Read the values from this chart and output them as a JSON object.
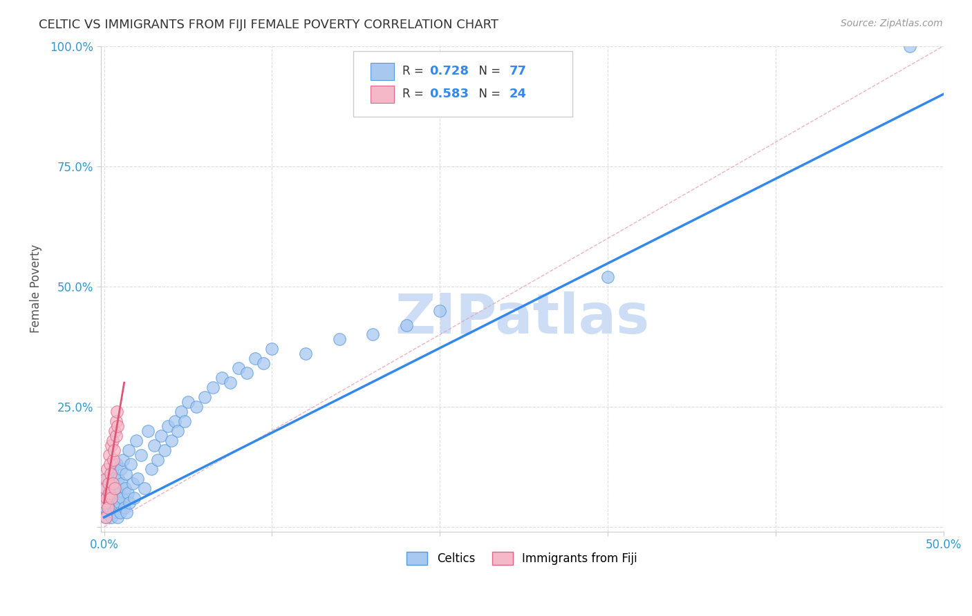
{
  "title": "CELTIC VS IMMIGRANTS FROM FIJI FEMALE POVERTY CORRELATION CHART",
  "source": "Source: ZipAtlas.com",
  "ylabel": "Female Poverty",
  "xlim": [
    -0.002,
    0.5
  ],
  "ylim": [
    -0.01,
    1.0
  ],
  "xticks": [
    0.0,
    0.1,
    0.2,
    0.3,
    0.4,
    0.5
  ],
  "yticks": [
    0.0,
    0.25,
    0.5,
    0.75,
    1.0
  ],
  "xticklabels": [
    "0.0%",
    "",
    "",
    "",
    "",
    "50.0%"
  ],
  "yticklabels": [
    "",
    "25.0%",
    "50.0%",
    "75.0%",
    "100.0%"
  ],
  "background_color": "#ffffff",
  "grid_color": "#dddddd",
  "celtics_color": "#a8c8f0",
  "fiji_color": "#f5b8c8",
  "celtics_edge_color": "#5599dd",
  "fiji_edge_color": "#dd6688",
  "watermark_text": "ZIPatlas",
  "watermark_color": "#ccddf5",
  "celtics_R": "0.728",
  "celtics_N": "77",
  "fiji_R": "0.583",
  "fiji_N": "24",
  "blue_line_color": "#3388ee",
  "pink_line_color": "#dd5577",
  "ref_line_color": "#ddaaaa",
  "legend_label_celtics": "Celtics",
  "legend_label_fiji": "Immigrants from Fiji",
  "celtics_x": [
    0.0005,
    0.0008,
    0.001,
    0.0012,
    0.0015,
    0.002,
    0.0022,
    0.0025,
    0.003,
    0.0032,
    0.0035,
    0.004,
    0.0042,
    0.0045,
    0.005,
    0.0052,
    0.0055,
    0.006,
    0.0062,
    0.0065,
    0.007,
    0.0072,
    0.0075,
    0.008,
    0.0082,
    0.0085,
    0.009,
    0.0092,
    0.0095,
    0.01,
    0.0105,
    0.011,
    0.0115,
    0.012,
    0.0125,
    0.013,
    0.0135,
    0.014,
    0.0145,
    0.015,
    0.016,
    0.017,
    0.018,
    0.019,
    0.02,
    0.022,
    0.024,
    0.026,
    0.028,
    0.03,
    0.032,
    0.034,
    0.036,
    0.038,
    0.04,
    0.042,
    0.044,
    0.046,
    0.048,
    0.05,
    0.055,
    0.06,
    0.065,
    0.07,
    0.075,
    0.08,
    0.085,
    0.09,
    0.095,
    0.1,
    0.12,
    0.14,
    0.16,
    0.18,
    0.2,
    0.3,
    0.48
  ],
  "celtics_y": [
    0.05,
    0.04,
    0.08,
    0.02,
    0.06,
    0.1,
    0.03,
    0.07,
    0.09,
    0.05,
    0.04,
    0.11,
    0.02,
    0.08,
    0.06,
    0.12,
    0.03,
    0.1,
    0.05,
    0.07,
    0.08,
    0.04,
    0.13,
    0.06,
    0.02,
    0.1,
    0.07,
    0.05,
    0.03,
    0.12,
    0.09,
    0.06,
    0.14,
    0.04,
    0.08,
    0.11,
    0.03,
    0.07,
    0.16,
    0.05,
    0.13,
    0.09,
    0.06,
    0.18,
    0.1,
    0.15,
    0.08,
    0.2,
    0.12,
    0.17,
    0.14,
    0.19,
    0.16,
    0.21,
    0.18,
    0.22,
    0.2,
    0.24,
    0.22,
    0.26,
    0.25,
    0.27,
    0.29,
    0.31,
    0.3,
    0.33,
    0.32,
    0.35,
    0.34,
    0.37,
    0.36,
    0.39,
    0.4,
    0.42,
    0.45,
    0.52,
    1.0
  ],
  "fiji_x": [
    0.0005,
    0.0008,
    0.001,
    0.0012,
    0.0015,
    0.002,
    0.0022,
    0.0025,
    0.003,
    0.0032,
    0.0035,
    0.004,
    0.0042,
    0.0045,
    0.005,
    0.0052,
    0.0055,
    0.006,
    0.0062,
    0.0065,
    0.007,
    0.0072,
    0.0075,
    0.008
  ],
  "fiji_y": [
    0.05,
    0.08,
    0.02,
    0.1,
    0.06,
    0.12,
    0.04,
    0.09,
    0.15,
    0.07,
    0.13,
    0.11,
    0.17,
    0.06,
    0.18,
    0.09,
    0.14,
    0.16,
    0.2,
    0.08,
    0.22,
    0.19,
    0.24,
    0.21
  ]
}
